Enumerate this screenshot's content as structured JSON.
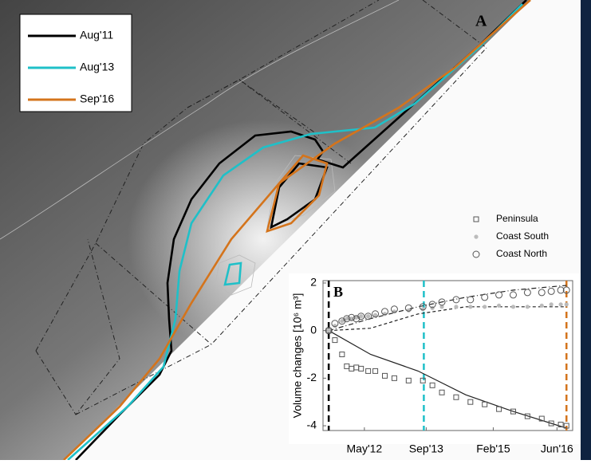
{
  "chart_data": [
    {
      "type": "map",
      "label": "A",
      "series": [
        {
          "name": "Aug'11",
          "color": "#000000"
        },
        {
          "name": "Aug'13",
          "color": "#1fc0c8"
        },
        {
          "name": "Sep'16",
          "color": "#d4741c"
        }
      ]
    },
    {
      "type": "scatter",
      "label": "B",
      "ylabel": "Volume changes [10⁶ m³]",
      "xlim": [
        2011.5,
        2016.75
      ],
      "ylim": [
        -4.2,
        2.1
      ],
      "xticks": [
        {
          "value": 2012.37,
          "label": "May'12"
        },
        {
          "value": 2013.67,
          "label": "Sep'13"
        },
        {
          "value": 2015.08,
          "label": "Feb'15"
        },
        {
          "value": 2016.42,
          "label": "Jun'16"
        }
      ],
      "yticks": [
        -4,
        -2,
        0,
        2
      ],
      "x": [
        2011.62,
        2011.75,
        2011.9,
        2012.0,
        2012.1,
        2012.2,
        2012.3,
        2012.45,
        2012.6,
        2012.8,
        2013.0,
        2013.3,
        2013.6,
        2013.8,
        2014.0,
        2014.3,
        2014.6,
        2014.9,
        2015.2,
        2015.5,
        2015.8,
        2016.1,
        2016.3,
        2016.5,
        2016.62
      ],
      "series": [
        {
          "name": "Peninsula",
          "marker": "square",
          "values": [
            0,
            -0.4,
            -1.0,
            -1.5,
            -1.6,
            -1.55,
            -1.6,
            -1.7,
            -1.7,
            -1.9,
            -2.0,
            -2.1,
            -2.1,
            -2.3,
            -2.6,
            -2.8,
            -3.0,
            -3.1,
            -3.3,
            -3.4,
            -3.6,
            -3.7,
            -3.9,
            -3.95,
            -4.0
          ]
        },
        {
          "name": "Coast South",
          "marker": "star",
          "values": [
            0,
            0.2,
            0.4,
            0.5,
            0.5,
            0.55,
            0.6,
            0.6,
            0.65,
            0.7,
            0.8,
            0.85,
            0.9,
            0.95,
            1.0,
            1.0,
            1.0,
            1.0,
            1.05,
            1.0,
            1.0,
            1.05,
            1.1,
            1.1,
            1.1
          ]
        },
        {
          "name": "Coast North",
          "marker": "circle",
          "values": [
            0,
            0.3,
            0.4,
            0.5,
            0.55,
            0.5,
            0.6,
            0.6,
            0.7,
            0.8,
            0.9,
            0.95,
            1.0,
            1.1,
            1.2,
            1.3,
            1.3,
            1.4,
            1.5,
            1.5,
            1.6,
            1.6,
            1.65,
            1.7,
            1.7
          ]
        }
      ],
      "line_x": [
        2011.62,
        2012.5,
        2013.5,
        2014.5,
        2015.5,
        2016.62
      ],
      "lines": [
        {
          "dash": "solid",
          "values": [
            0,
            -1.0,
            -1.7,
            -2.7,
            -3.4,
            -4.1
          ]
        },
        {
          "dash": "dashdot",
          "values": [
            0,
            0.5,
            1.0,
            1.4,
            1.7,
            1.9
          ]
        },
        {
          "dash": "dashed",
          "values": [
            0,
            0.1,
            0.7,
            1.0,
            1.0,
            1.0
          ]
        }
      ],
      "survey_lines": [
        {
          "x": 2011.62,
          "color": "#000000"
        },
        {
          "x": 2013.62,
          "color": "#1fc0c8"
        },
        {
          "x": 2016.62,
          "color": "#d4741c"
        }
      ]
    }
  ]
}
